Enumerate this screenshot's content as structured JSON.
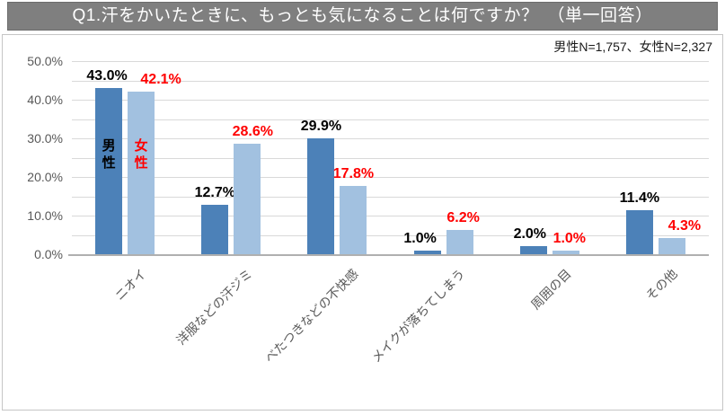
{
  "chart_data": {
    "type": "bar",
    "title": "Q1.汗をかいたときに、もっとも気になることは何ですか？　（単一回答）",
    "note": "男性N=1,757、女性N=2,327",
    "categories": [
      "ニオイ",
      "洋服などの汗ジミ",
      "べたつきなどの不快感",
      "メイクが落ちてしまう",
      "周囲の目",
      "その他"
    ],
    "series": [
      {
        "key": "male",
        "name": "男性",
        "color": "#4C81B8",
        "label_color": "#000000",
        "values": [
          43.0,
          12.7,
          29.9,
          1.0,
          2.0,
          11.4
        ],
        "label_dx": [
          -2,
          0,
          0,
          -8,
          -4,
          0
        ]
      },
      {
        "key": "female",
        "name": "女性",
        "color": "#A2C1E0",
        "label_color": "#FF0000",
        "values": [
          42.1,
          28.6,
          17.8,
          6.2,
          1.0,
          4.3
        ],
        "label_dx": [
          22,
          6,
          0,
          4,
          4,
          14
        ]
      }
    ],
    "ylim": [
      0,
      50
    ],
    "ytick_step": 10,
    "grid_step": 5,
    "yaxis_tick_labels": [
      "0.0%",
      "10.0%",
      "20.0%",
      "30.0%",
      "40.0%",
      "50.0%"
    ],
    "grid": "on",
    "legend_position": "inside-first-bars",
    "xlabel": "",
    "ylabel": ""
  },
  "colors": {
    "banner_bg": "#7F7F7F",
    "banner_text": "#FFFFFF",
    "grid": "#D9D9D9",
    "axis_line": "#B0B0B0",
    "axis_text": "#595959",
    "frame_border": "#C6C6C6"
  }
}
